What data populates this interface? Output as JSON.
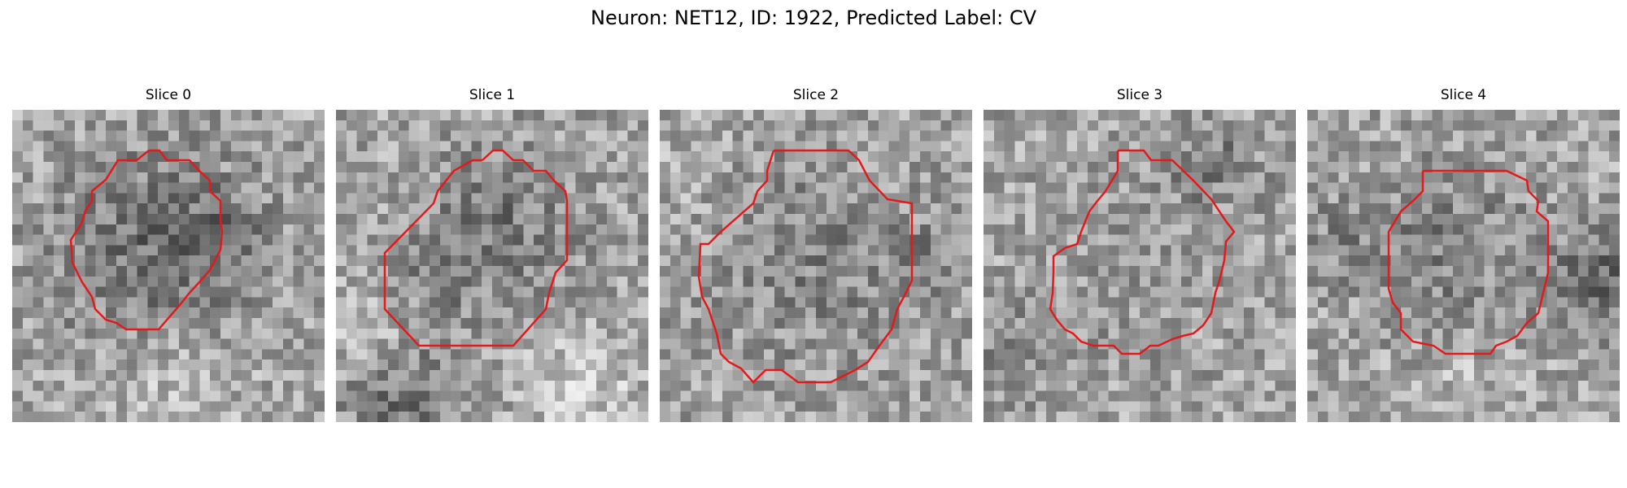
{
  "figure": {
    "title": "Neuron: NET12, ID: 1922, Predicted Label: CV",
    "contour_color": "#e31a1c"
  },
  "slices": [
    {
      "title": "Slice 0"
    },
    {
      "title": "Slice 1"
    },
    {
      "title": "Slice 2"
    },
    {
      "title": "Slice 3"
    },
    {
      "title": "Slice 4"
    }
  ]
}
